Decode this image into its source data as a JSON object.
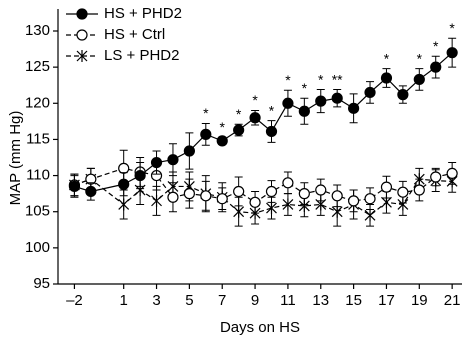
{
  "chart_data": {
    "type": "line",
    "x": [
      -2,
      -1,
      1,
      2,
      3,
      4,
      5,
      6,
      7,
      8,
      9,
      10,
      11,
      12,
      13,
      14,
      15,
      16,
      17,
      18,
      19,
      20,
      21
    ],
    "series": [
      {
        "name": "HS + PHD2",
        "color": "#000000",
        "marker": "filled",
        "values": [
          108.5,
          107.8,
          108.8,
          110.0,
          111.8,
          112.2,
          113.4,
          115.7,
          114.8,
          116.3,
          118.0,
          116.1,
          120.0,
          118.9,
          120.3,
          120.7,
          119.3,
          121.5,
          123.5,
          121.2,
          123.3,
          125.0,
          127.0
        ],
        "errors": [
          1.5,
          1.2,
          1.6,
          1.8,
          1.6,
          2.2,
          2.5,
          1.5,
          0.5,
          0.8,
          1.0,
          1.5,
          1.8,
          1.8,
          1.6,
          1.2,
          2.0,
          1.5,
          1.3,
          1.2,
          1.5,
          1.5,
          2.0
        ],
        "significance": [
          null,
          null,
          null,
          null,
          null,
          null,
          null,
          "*",
          "*",
          "*",
          "*",
          "*",
          "*",
          "*",
          "*",
          "**",
          null,
          null,
          "*",
          null,
          "*",
          "*",
          "*"
        ]
      },
      {
        "name": "HS + Ctrl",
        "color": "#000000",
        "marker": "open",
        "values": [
          108.7,
          109.5,
          111.0,
          110.5,
          110.0,
          107.0,
          107.5,
          107.2,
          106.8,
          107.8,
          106.3,
          107.8,
          109.0,
          107.5,
          108.0,
          107.2,
          106.5,
          106.8,
          108.4,
          107.7,
          108.0,
          109.8,
          110.3
        ],
        "errors": [
          1.5,
          1.5,
          2.5,
          2.0,
          2.0,
          2.0,
          2.0,
          2.0,
          1.5,
          2.0,
          1.5,
          1.5,
          1.5,
          1.5,
          1.5,
          1.5,
          1.5,
          1.5,
          1.5,
          1.5,
          1.5,
          1.2,
          1.5
        ]
      },
      {
        "name": "LS + PHD2",
        "color": "#000000",
        "marker": "star",
        "values": [
          108.7,
          109.5,
          106.0,
          108.0,
          106.5,
          108.5,
          108.5,
          107.5,
          107.0,
          105.0,
          104.8,
          105.5,
          106.0,
          105.8,
          106.0,
          105.0,
          106.0,
          104.5,
          106.3,
          106.0,
          109.5,
          109.3,
          109.2
        ],
        "errors": [
          1.5,
          1.5,
          2.0,
          2.0,
          2.0,
          2.0,
          2.0,
          2.5,
          2.0,
          2.0,
          1.5,
          1.5,
          1.5,
          1.5,
          1.5,
          2.0,
          2.0,
          1.5,
          1.5,
          1.5,
          1.5,
          1.5,
          1.5
        ]
      }
    ],
    "x_label": "Days on HS",
    "y_label": "MAP (mm Hg)",
    "xlim": [
      -3,
      21.6
    ],
    "xticks": [
      {
        "value": -2,
        "label": "–2"
      },
      1,
      3,
      5,
      7,
      9,
      11,
      13,
      15,
      17,
      19,
      21
    ],
    "ylim": [
      95,
      130
    ],
    "yticks": [
      95,
      100,
      105,
      110,
      115,
      120,
      125,
      130
    ],
    "grid": false,
    "legend": "top-left"
  }
}
